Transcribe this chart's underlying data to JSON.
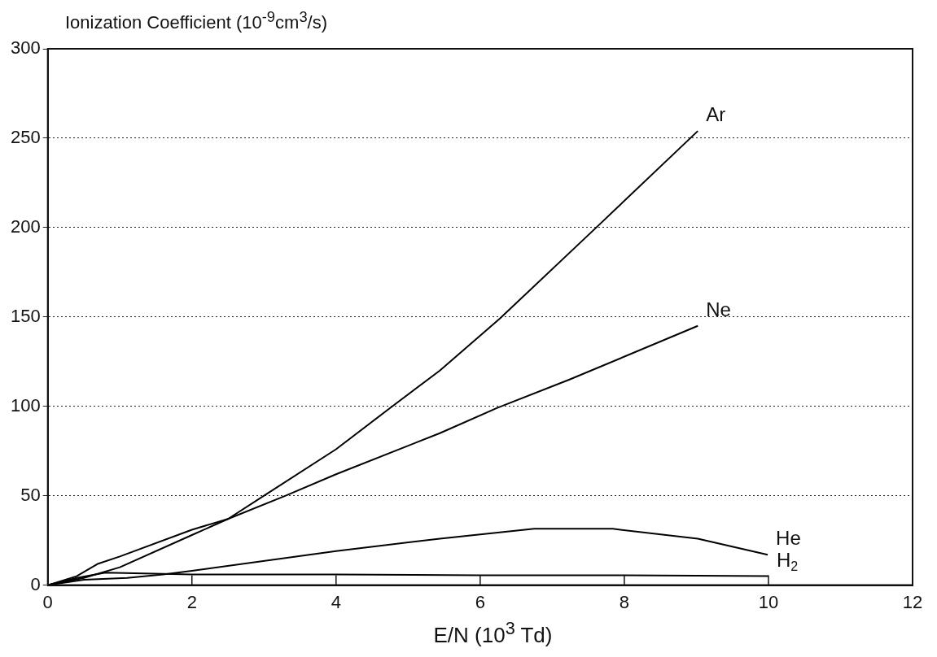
{
  "chart_data": {
    "type": "line",
    "xlabel": "E/N (10$^{3}$ Td)",
    "ylabel": "Ionization Coefficient (10$^{-9}$cm$^{3}$/s)",
    "series": [
      {
        "name": "Ar",
        "color": "#000000",
        "x": [
          0,
          0.5,
          1,
          2,
          2.5,
          3,
          4,
          4.78,
          5.44,
          6.27,
          7.61,
          9.02
        ],
        "values": [
          0,
          4,
          10,
          28,
          37,
          50,
          76,
          100,
          120,
          149,
          200,
          254
        ]
      },
      {
        "name": "Ne",
        "color": "#000000",
        "x": [
          0,
          0.4,
          0.7,
          1,
          2,
          2.5,
          3.3,
          4,
          5.44,
          6.23,
          7.24,
          9.02
        ],
        "values": [
          0,
          5,
          12,
          16,
          31,
          37,
          50,
          62,
          85,
          99,
          115,
          145
        ]
      },
      {
        "name": "He",
        "color": "#000000",
        "x": [
          0,
          0.5,
          1.1,
          1.6,
          2,
          4,
          5.44,
          6.75,
          7.84,
          9.02,
          9.99
        ],
        "values": [
          0,
          3,
          4,
          6,
          8,
          19,
          26,
          31.5,
          31.5,
          26,
          17
        ]
      },
      {
        "name": "H$_{2}$",
        "color": "#000000",
        "x": [
          0,
          0.4,
          0.8,
          2,
          4,
          6,
          8,
          10
        ],
        "values": [
          0,
          4,
          7,
          6,
          6,
          5.5,
          5.5,
          5
        ]
      }
    ],
    "xlim": [
      0,
      12
    ],
    "xticks": [
      0,
      2,
      4,
      6,
      8,
      10,
      12
    ],
    "ylim": [
      0,
      300
    ],
    "yticks": [
      0,
      50,
      100,
      150,
      200,
      250,
      300
    ],
    "grid": "y",
    "legend": false,
    "marker": "none",
    "line_style": "solid"
  }
}
